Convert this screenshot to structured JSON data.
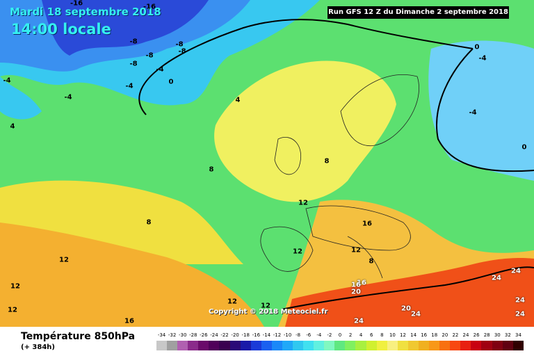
{
  "header": {
    "date": "Mardi 18 septembre 2018",
    "time": "14:00 locale",
    "run": "Run GFS 12 Z du Dimanche 2 septembre 2018"
  },
  "footer": {
    "title": "Température 850hPa",
    "subtitle": "(+ 384h)",
    "copyright": "Copyright © 2018 Meteociel.fr"
  },
  "legend": {
    "ticks": [
      "-34",
      "-32",
      "-30",
      "-28",
      "-26",
      "-24",
      "-22",
      "-20",
      "-18",
      "-16",
      "-14",
      "-12",
      "-10",
      "-8",
      "-6",
      "-4",
      "-2",
      "0",
      "2",
      "4",
      "6",
      "8",
      "10",
      "12",
      "14",
      "16",
      "18",
      "20",
      "22",
      "24",
      "26",
      "28",
      "30",
      "32",
      "34"
    ],
    "colors": [
      "#c8c8c8",
      "#a0a0a0",
      "#b060b0",
      "#8a2a8a",
      "#6a0a6a",
      "#50005a",
      "#3a0050",
      "#2a0a78",
      "#1a1aa8",
      "#1a3ad8",
      "#1a60f0",
      "#1a88f8",
      "#20a8f8",
      "#30c8f0",
      "#40e0f0",
      "#60f0e0",
      "#80f8c0",
      "#60e880",
      "#80f060",
      "#a8f040",
      "#d0f030",
      "#f0f040",
      "#f8f080",
      "#f0e040",
      "#f0c830",
      "#f0b020",
      "#f89818",
      "#f87010",
      "#f84810",
      "#e82010",
      "#c80010",
      "#a00010",
      "#800010",
      "#600010",
      "#300000"
    ]
  },
  "map_labels": {
    "isotherms": [
      "-16",
      "-16",
      "-8",
      "-8",
      "-8",
      "-8",
      "-8",
      "-4",
      "-4",
      "-4",
      "0",
      "-4",
      "4",
      "4",
      "0",
      "-4",
      "-4",
      "0",
      "8",
      "8",
      "8",
      "12",
      "12",
      "12",
      "16",
      "12",
      "12",
      "8",
      "12",
      "16",
      "20",
      "16",
      "16",
      "12",
      "12",
      "24",
      "24",
      "24",
      "24",
      "20",
      "24",
      "24"
    ]
  }
}
